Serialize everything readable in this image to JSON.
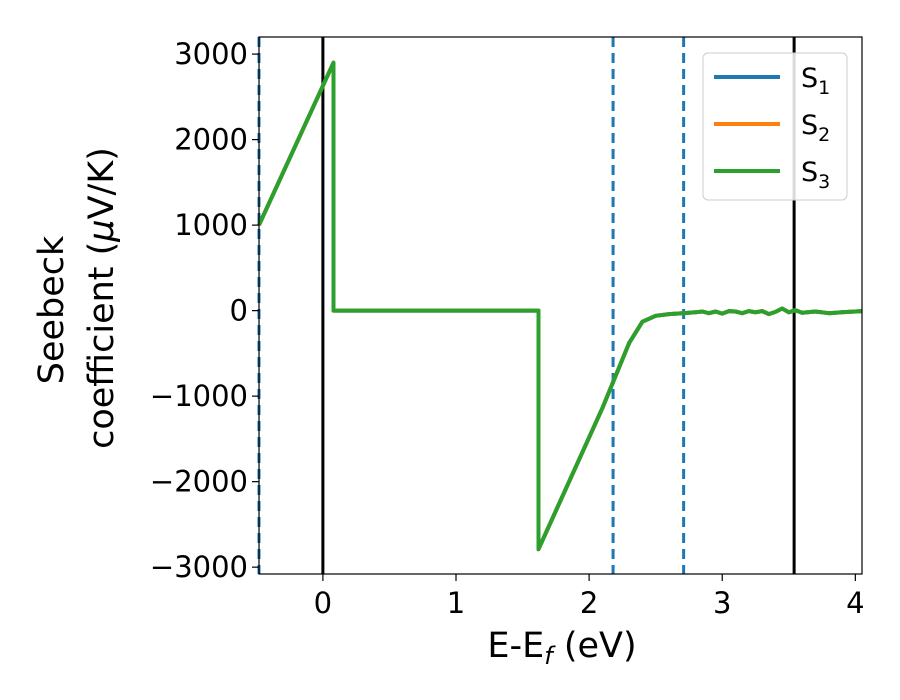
{
  "chart_data": {
    "type": "line",
    "xlabel": "E-E",
    "xlabel_sub": "f",
    "xlabel_unit": " (eV)",
    "ylabel_line1": "Seebeck",
    "ylabel_line2_pre": "coefficient  (",
    "ylabel_line2_mu": "μ",
    "ylabel_line2_post": "V/K)",
    "xlim": [
      -0.48,
      4.05
    ],
    "ylim": [
      -3080,
      3200
    ],
    "x_ticks": [
      0,
      1,
      2,
      3,
      4
    ],
    "y_ticks": [
      -3000,
      -2000,
      -1000,
      0,
      1000,
      2000,
      3000
    ],
    "x_tick_labels": [
      "0",
      "1",
      "2",
      "3",
      "4"
    ],
    "y_tick_labels": [
      "−3000",
      "−2000",
      "−1000",
      "0",
      "1000",
      "2000",
      "3000"
    ],
    "vlines_solid": [
      0,
      3.54
    ],
    "vlines_dashed": [
      -0.48,
      2.18,
      2.71
    ],
    "legend_position": "top-right",
    "series": [
      {
        "name": "S",
        "sub": "1",
        "color": "#1f77b4",
        "x": [
          -0.48,
          0.08,
          0.08,
          1.62,
          1.62,
          2.1,
          2.3,
          2.4,
          2.5,
          2.6,
          2.7,
          2.8,
          2.85,
          2.9,
          2.95,
          3.0,
          3.05,
          3.1,
          3.15,
          3.2,
          3.25,
          3.3,
          3.35,
          3.4,
          3.45,
          3.5,
          3.55,
          3.6,
          3.7,
          3.8,
          3.9,
          4.05
        ],
        "y": [
          1000,
          2900,
          0,
          0,
          -2790,
          -1140,
          -380,
          -130,
          -60,
          -40,
          -30,
          -20,
          -10,
          -30,
          -10,
          -35,
          -5,
          -10,
          -30,
          -5,
          -20,
          -5,
          -40,
          -15,
          25,
          -20,
          5,
          -25,
          -10,
          -30,
          -20,
          -5
        ]
      },
      {
        "name": "S",
        "sub": "2",
        "color": "#ff7f0e",
        "x": [
          -0.48,
          0.08,
          0.08,
          1.62,
          1.62,
          2.1,
          2.3,
          2.4,
          2.5,
          2.6,
          2.7,
          2.8,
          2.85,
          2.9,
          2.95,
          3.0,
          3.05,
          3.1,
          3.15,
          3.2,
          3.25,
          3.3,
          3.35,
          3.4,
          3.45,
          3.5,
          3.55,
          3.6,
          3.7,
          3.8,
          3.9,
          4.05
        ],
        "y": [
          1000,
          2900,
          0,
          0,
          -2790,
          -1140,
          -380,
          -130,
          -60,
          -40,
          -30,
          -20,
          -10,
          -30,
          -10,
          -35,
          -5,
          -10,
          -30,
          -5,
          -20,
          -5,
          -40,
          -15,
          25,
          -20,
          5,
          -25,
          -10,
          -30,
          -20,
          -5
        ]
      },
      {
        "name": "S",
        "sub": "3",
        "color": "#2ca02c",
        "x": [
          -0.48,
          0.08,
          0.08,
          1.62,
          1.62,
          2.1,
          2.3,
          2.4,
          2.5,
          2.6,
          2.7,
          2.8,
          2.85,
          2.9,
          2.95,
          3.0,
          3.05,
          3.1,
          3.15,
          3.2,
          3.25,
          3.3,
          3.35,
          3.4,
          3.45,
          3.5,
          3.55,
          3.6,
          3.7,
          3.8,
          3.9,
          4.05
        ],
        "y": [
          1000,
          2900,
          0,
          0,
          -2790,
          -1140,
          -380,
          -130,
          -60,
          -40,
          -30,
          -20,
          -10,
          -30,
          -10,
          -35,
          -5,
          -10,
          -30,
          -5,
          -20,
          -5,
          -40,
          -15,
          25,
          -20,
          5,
          -25,
          -10,
          -30,
          -20,
          -5
        ]
      }
    ]
  }
}
